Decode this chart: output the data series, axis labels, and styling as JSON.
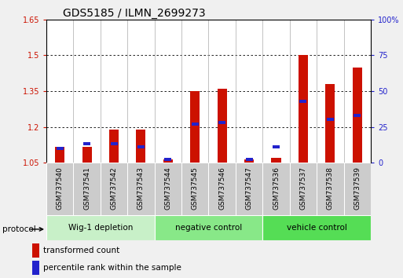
{
  "title": "GDS5185 / ILMN_2699273",
  "samples": [
    "GSM737540",
    "GSM737541",
    "GSM737542",
    "GSM737543",
    "GSM737544",
    "GSM737545",
    "GSM737546",
    "GSM737547",
    "GSM737536",
    "GSM737537",
    "GSM737538",
    "GSM737539"
  ],
  "transformed_counts": [
    1.115,
    1.115,
    1.19,
    1.19,
    1.065,
    1.35,
    1.36,
    1.065,
    1.07,
    1.5,
    1.38,
    1.45
  ],
  "blue_pcts": [
    10,
    13,
    13,
    11,
    2,
    27,
    28,
    2,
    11,
    43,
    30,
    33
  ],
  "groups": [
    {
      "label": "Wig-1 depletion",
      "start": 0,
      "end": 4,
      "color": "#c8f0c8"
    },
    {
      "label": "negative control",
      "start": 4,
      "end": 8,
      "color": "#88e888"
    },
    {
      "label": "vehicle control",
      "start": 8,
      "end": 12,
      "color": "#55dd55"
    }
  ],
  "ylim_left": [
    1.05,
    1.65
  ],
  "ylim_right": [
    0,
    100
  ],
  "yticks_left": [
    1.05,
    1.2,
    1.35,
    1.5,
    1.65
  ],
  "yticks_right": [
    0,
    25,
    50,
    75,
    100
  ],
  "ytick_labels_right": [
    "0",
    "25",
    "50",
    "75",
    "100%"
  ],
  "bar_width": 0.35,
  "bar_color_red": "#cc1100",
  "bar_color_blue": "#2222cc",
  "baseline": 1.05,
  "bg_color": "#f0f0f0",
  "plot_bg": "#ffffff",
  "grid_color": "#000000",
  "left_tick_color": "#cc1100",
  "right_tick_color": "#2222cc",
  "sample_box_color": "#cccccc",
  "title_fontsize": 10,
  "tick_fontsize": 7,
  "label_fontsize": 7.5,
  "legend_fontsize": 7.5
}
